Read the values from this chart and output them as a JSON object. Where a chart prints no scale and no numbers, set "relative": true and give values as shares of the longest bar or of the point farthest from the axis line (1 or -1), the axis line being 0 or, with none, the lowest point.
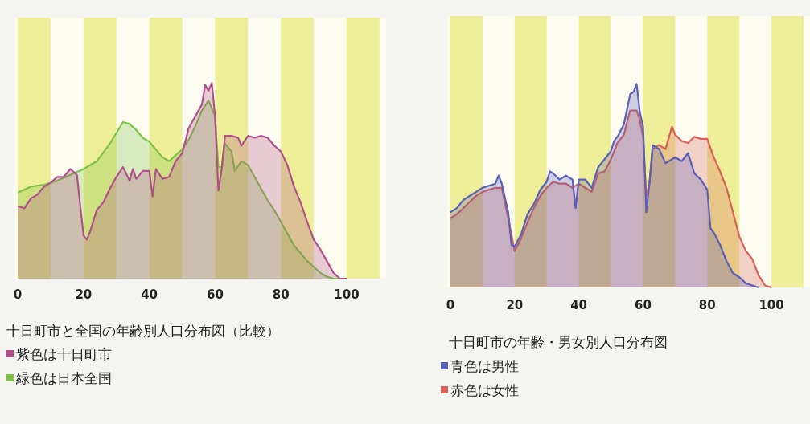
{
  "chart_data": [
    {
      "type": "area",
      "title": "十日町市と全国の年齢別人口分布図（比較）",
      "relative": true,
      "legend": "bottom",
      "tick_labels": "x",
      "xlim": [
        -1,
        112
      ],
      "xticks": [
        0,
        20,
        40,
        60,
        80,
        100
      ],
      "bands": [
        {
          "axis": "x",
          "from": 0,
          "to": 10,
          "color": "#eeee99"
        },
        {
          "axis": "x",
          "from": 20,
          "to": 30,
          "color": "#eeee99"
        },
        {
          "axis": "x",
          "from": 40,
          "to": 50,
          "color": "#eeee99"
        },
        {
          "axis": "x",
          "from": 60,
          "to": 70,
          "color": "#eeee99"
        },
        {
          "axis": "x",
          "from": 80,
          "to": 90,
          "color": "#eeee99"
        },
        {
          "axis": "x",
          "from": 100,
          "to": 110,
          "color": "#eeee99"
        }
      ],
      "series": [
        {
          "name": "緑色は日本全国",
          "color": "#7cc244",
          "x": [
            0,
            4,
            8,
            12,
            16,
            20,
            24,
            28,
            32,
            34,
            36,
            38,
            40,
            42,
            44,
            46,
            48,
            50,
            52,
            54,
            56,
            58,
            60,
            61,
            62,
            63,
            65,
            66,
            68,
            70,
            72,
            74,
            76,
            78,
            80,
            82,
            84,
            86,
            88,
            90,
            92,
            94,
            96,
            100
          ],
          "values": [
            0.44,
            0.47,
            0.48,
            0.5,
            0.53,
            0.56,
            0.6,
            0.69,
            0.8,
            0.79,
            0.76,
            0.72,
            0.7,
            0.66,
            0.62,
            0.6,
            0.63,
            0.66,
            0.71,
            0.78,
            0.86,
            0.91,
            0.83,
            0.57,
            0.57,
            0.69,
            0.65,
            0.55,
            0.6,
            0.58,
            0.52,
            0.46,
            0.4,
            0.35,
            0.29,
            0.23,
            0.17,
            0.13,
            0.09,
            0.06,
            0.03,
            0.01,
            0,
            0
          ]
        },
        {
          "name": "紫色は十日町市",
          "color": "#b0508a",
          "x": [
            0,
            2,
            4,
            6,
            8,
            10,
            12,
            14,
            16,
            18,
            19,
            20,
            21,
            22,
            24,
            26,
            28,
            30,
            32,
            34,
            35,
            36,
            38,
            40,
            41,
            42,
            44,
            46,
            48,
            50,
            52,
            54,
            56,
            57,
            58,
            59,
            60,
            61,
            62,
            63,
            65,
            67,
            68,
            70,
            72,
            74,
            76,
            78,
            80,
            82,
            84,
            86,
            88,
            90,
            92,
            94,
            96,
            98,
            100
          ],
          "values": [
            0.37,
            0.36,
            0.41,
            0.43,
            0.47,
            0.49,
            0.52,
            0.52,
            0.56,
            0.53,
            0.37,
            0.22,
            0.2,
            0.24,
            0.35,
            0.39,
            0.46,
            0.52,
            0.57,
            0.5,
            0.56,
            0.51,
            0.55,
            0.55,
            0.42,
            0.56,
            0.51,
            0.52,
            0.6,
            0.64,
            0.77,
            0.83,
            0.89,
            0.99,
            0.96,
            1,
            0.83,
            0.45,
            0.56,
            0.73,
            0.73,
            0.72,
            0.68,
            0.73,
            0.72,
            0.73,
            0.72,
            0.68,
            0.65,
            0.58,
            0.47,
            0.39,
            0.29,
            0.2,
            0.15,
            0.09,
            0.03,
            0,
            0
          ]
        }
      ]
    },
    {
      "type": "area",
      "title": "十日町市の年齢・男女別人口分布図",
      "relative": true,
      "legend": "bottom",
      "tick_labels": "x",
      "xlim": [
        -1,
        112
      ],
      "xticks": [
        0,
        20,
        40,
        60,
        80,
        100
      ],
      "bands": [
        {
          "axis": "x",
          "from": 0,
          "to": 10,
          "color": "#eeee99"
        },
        {
          "axis": "x",
          "from": 20,
          "to": 30,
          "color": "#eeee99"
        },
        {
          "axis": "x",
          "from": 40,
          "to": 50,
          "color": "#eeee99"
        },
        {
          "axis": "x",
          "from": 60,
          "to": 70,
          "color": "#eeee99"
        },
        {
          "axis": "x",
          "from": 80,
          "to": 90,
          "color": "#eeee99"
        },
        {
          "axis": "x",
          "from": 100,
          "to": 110,
          "color": "#eeee99"
        }
      ],
      "series": [
        {
          "name": "赤色は女性",
          "color": "#d9605a",
          "x": [
            0,
            2,
            4,
            6,
            8,
            10,
            12,
            14,
            16,
            18,
            20,
            22,
            24,
            26,
            28,
            30,
            32,
            34,
            36,
            38,
            40,
            42,
            44,
            46,
            48,
            50,
            52,
            54,
            56,
            58,
            59,
            60,
            61,
            62,
            63,
            65,
            67,
            69,
            70,
            72,
            74,
            76,
            78,
            80,
            82,
            84,
            86,
            88,
            90,
            92,
            94,
            96,
            98,
            100
          ],
          "values": [
            0.34,
            0.36,
            0.39,
            0.42,
            0.45,
            0.47,
            0.48,
            0.49,
            0.49,
            0.34,
            0.18,
            0.24,
            0.32,
            0.39,
            0.45,
            0.49,
            0.52,
            0.51,
            0.51,
            0.49,
            0.51,
            0.49,
            0.47,
            0.56,
            0.57,
            0.63,
            0.71,
            0.75,
            0.87,
            0.87,
            0.82,
            0.74,
            0.45,
            0.51,
            0.68,
            0.7,
            0.68,
            0.79,
            0.75,
            0.72,
            0.71,
            0.74,
            0.73,
            0.73,
            0.64,
            0.57,
            0.49,
            0.37,
            0.25,
            0.18,
            0.14,
            0.06,
            0.01,
            0
          ]
        },
        {
          "name": "青色は男性",
          "color": "#5a5fb8",
          "x": [
            0,
            2,
            4,
            6,
            8,
            10,
            12,
            14,
            15,
            16,
            18,
            19,
            20,
            22,
            24,
            26,
            28,
            30,
            31,
            32,
            34,
            36,
            38,
            39,
            40,
            42,
            44,
            46,
            48,
            50,
            51,
            52,
            54,
            56,
            57,
            58,
            59,
            60,
            61,
            62,
            63,
            65,
            67,
            68,
            70,
            72,
            74,
            76,
            78,
            80,
            81,
            82,
            84,
            86,
            88,
            90,
            92,
            94,
            96
          ],
          "values": [
            0.37,
            0.39,
            0.43,
            0.45,
            0.47,
            0.49,
            0.5,
            0.51,
            0.55,
            0.51,
            0.37,
            0.21,
            0.2,
            0.26,
            0.36,
            0.41,
            0.48,
            0.52,
            0.57,
            0.56,
            0.53,
            0.55,
            0.53,
            0.39,
            0.53,
            0.53,
            0.49,
            0.59,
            0.63,
            0.67,
            0.72,
            0.74,
            0.8,
            0.95,
            0.96,
            1,
            0.86,
            0.79,
            0.37,
            0.51,
            0.7,
            0.68,
            0.61,
            0.62,
            0.64,
            0.62,
            0.66,
            0.56,
            0.53,
            0.48,
            0.29,
            0.27,
            0.21,
            0.13,
            0.07,
            0.05,
            0.02,
            0.01,
            0
          ]
        }
      ]
    }
  ]
}
